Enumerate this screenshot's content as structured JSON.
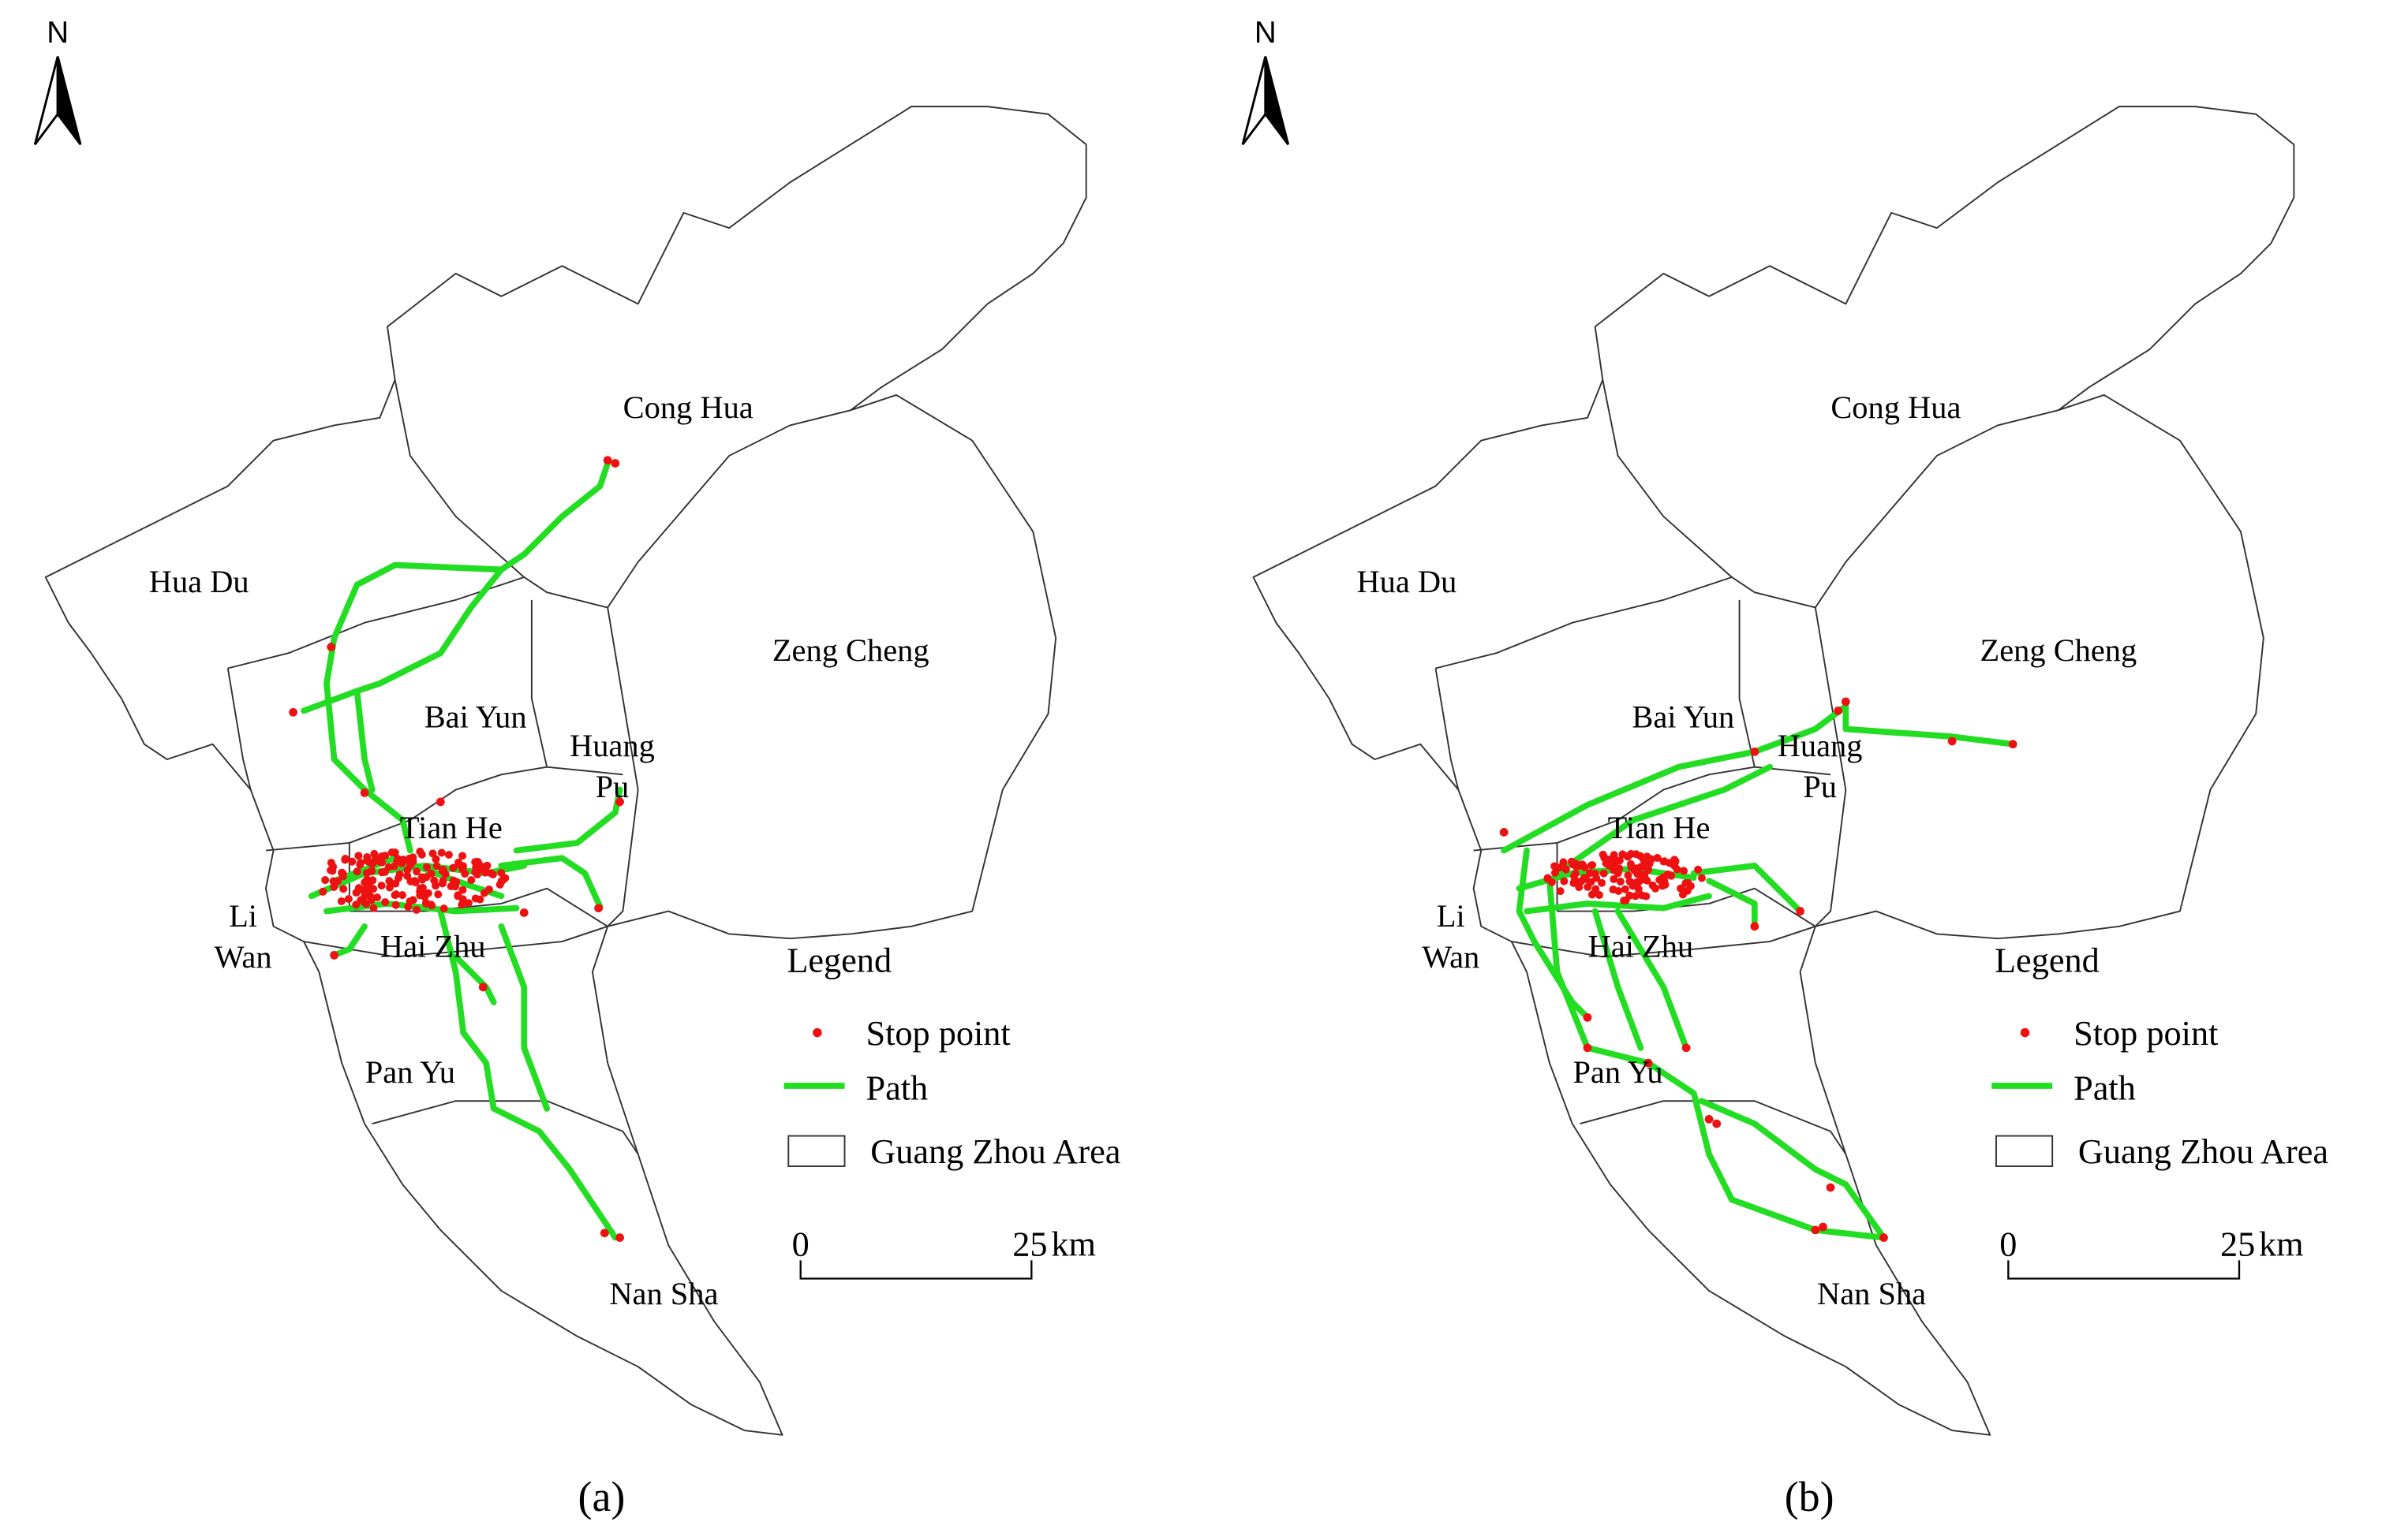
{
  "panels": [
    {
      "caption": "(a)",
      "north": "N",
      "districts": [
        {
          "lines": [
            "Cong Hua"
          ]
        },
        {
          "lines": [
            "Hua Du"
          ]
        },
        {
          "lines": [
            "Zeng Cheng"
          ]
        },
        {
          "lines": [
            "Bai Yun"
          ]
        },
        {
          "lines": [
            "Huang",
            "Pu"
          ]
        },
        {
          "lines": [
            "Tian He"
          ]
        },
        {
          "lines": [
            "Li",
            "Wan"
          ]
        },
        {
          "lines": [
            "Hai Zhu"
          ]
        },
        {
          "lines": [
            "Pan Yu"
          ]
        },
        {
          "lines": [
            "Nan Sha"
          ]
        }
      ],
      "legend": {
        "title": "Legend",
        "items": [
          "Stop point",
          "Path",
          "Guang Zhou Area"
        ]
      },
      "scale_bar": {
        "start": "0",
        "end": "25",
        "unit": "km"
      }
    },
    {
      "caption": "(b)",
      "north": "N",
      "districts": [
        {
          "lines": [
            "Cong Hua"
          ]
        },
        {
          "lines": [
            "Hua Du"
          ]
        },
        {
          "lines": [
            "Zeng Cheng"
          ]
        },
        {
          "lines": [
            "Bai Yun"
          ]
        },
        {
          "lines": [
            "Huang",
            "Pu"
          ]
        },
        {
          "lines": [
            "Tian He"
          ]
        },
        {
          "lines": [
            "Li",
            "Wan"
          ]
        },
        {
          "lines": [
            "Hai Zhu"
          ]
        },
        {
          "lines": [
            "Pan Yu"
          ]
        },
        {
          "lines": [
            "Nan Sha"
          ]
        }
      ],
      "legend": {
        "title": "Legend",
        "items": [
          "Stop point",
          "Path",
          "Guang Zhou Area"
        ]
      },
      "scale_bar": {
        "start": "0",
        "end": "25",
        "unit": "km"
      }
    }
  ]
}
